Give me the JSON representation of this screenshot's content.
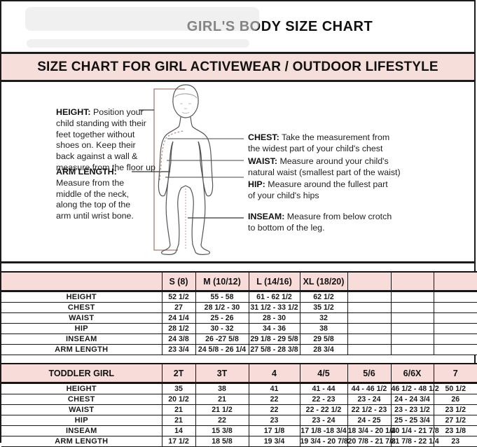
{
  "page": {
    "title": "GIRL'S BODY SIZE CHART",
    "banner": "SIZE CHART FOR GIRL ACTIVEWEAR / OUTDOOR LIFESTYLE"
  },
  "colors": {
    "banner_pink": "#f6dedb",
    "table_header_pink": "#f7dcd9",
    "border_black": "#1b1b1b",
    "figure_outline_gray": "#555555",
    "bracket_brown": "#ab7f70",
    "inseam_dotted_pink": "#c79a90"
  },
  "instructions": {
    "height": {
      "label": "HEIGHT:",
      "text": "Position your child standing with their feet together without shoes on. Keep their back against a wall & measure from the floor up"
    },
    "arm_length": {
      "label": "ARM LENGTH:",
      "text": "Measure from the middle of the neck, along the top of the arm until wrist bone."
    },
    "chest": {
      "label": "CHEST:",
      "text": "Take the measurement from the widest part of your child's chest"
    },
    "waist": {
      "label": "WAIST:",
      "text": "Measure around your child's natural waist (smallest part of the waist)"
    },
    "hip": {
      "label": "HIP:",
      "text": "Measure around the fullest part of your child's hips"
    },
    "inseam": {
      "label": "INSEAM:",
      "text": "Measure from below crotch to bottom of the leg."
    }
  },
  "size_table": {
    "header": [
      "",
      "S (8)",
      "M (10/12)",
      "L (14/16)",
      "XL (18/20)",
      "",
      "",
      ""
    ],
    "rows": [
      [
        "HEIGHT",
        "52 1/2",
        "55 - 58",
        "61 - 62 1/2",
        "62 1/2",
        "",
        "",
        ""
      ],
      [
        "CHEST",
        "27",
        "28 1/2 - 30",
        "31 1/2 - 33 1/2",
        "35 1/2",
        "",
        "",
        ""
      ],
      [
        "WAIST",
        "24 1/4",
        "25 - 26",
        "28 - 30",
        "32",
        "",
        "",
        ""
      ],
      [
        "HIP",
        "28 1/2",
        "30 - 32",
        "34 - 36",
        "38",
        "",
        "",
        ""
      ],
      [
        "INSEAM",
        "24 3/8",
        "26 -27 5/8",
        "29 1/8 - 29 5/8",
        "29 5/8",
        "",
        "",
        ""
      ],
      [
        "ARM LENGTH",
        "23 3/4",
        "24 5/8 - 26 1/4",
        "27 5/8 - 28 3/8",
        "28 3/4",
        "",
        "",
        ""
      ]
    ]
  },
  "toddler_table": {
    "header": [
      "TODDLER GIRL",
      "2T",
      "3T",
      "4",
      "4/5",
      "5/6",
      "6/6X",
      "7"
    ],
    "rows": [
      [
        "HEIGHT",
        "35",
        "38",
        "41",
        "41 - 44",
        "44 - 46 1/2",
        "46 1/2 - 48 1/2",
        "50 1/2"
      ],
      [
        "CHEST",
        "20 1/2",
        "21",
        "22",
        "22 - 23",
        "23 - 24",
        "24 - 24 3/4",
        "26"
      ],
      [
        "WAIST",
        "21",
        "21 1/2",
        "22",
        "22 - 22 1/2",
        "22 1/2 - 23",
        "23 - 23 1/2",
        "23 1/2"
      ],
      [
        "HIP",
        "21",
        "22",
        "23",
        "23 - 24",
        "24 - 25",
        "25 - 25 3/4",
        "27 1/2"
      ],
      [
        "INSEAM",
        "14",
        "15 3/8",
        "17 1/8",
        "17 1/8 -18 3/4",
        "18 3/4 - 20 1/4",
        "20 1/4 - 21 7/8",
        "23 1/8"
      ],
      [
        "ARM LENGTH",
        "17 1/2",
        "18 5/8",
        "19 3/4",
        "19 3/4 - 20 7/8",
        "20 7/8 - 21 7/8",
        "21 7/8 - 22 1/4",
        "23"
      ]
    ]
  }
}
